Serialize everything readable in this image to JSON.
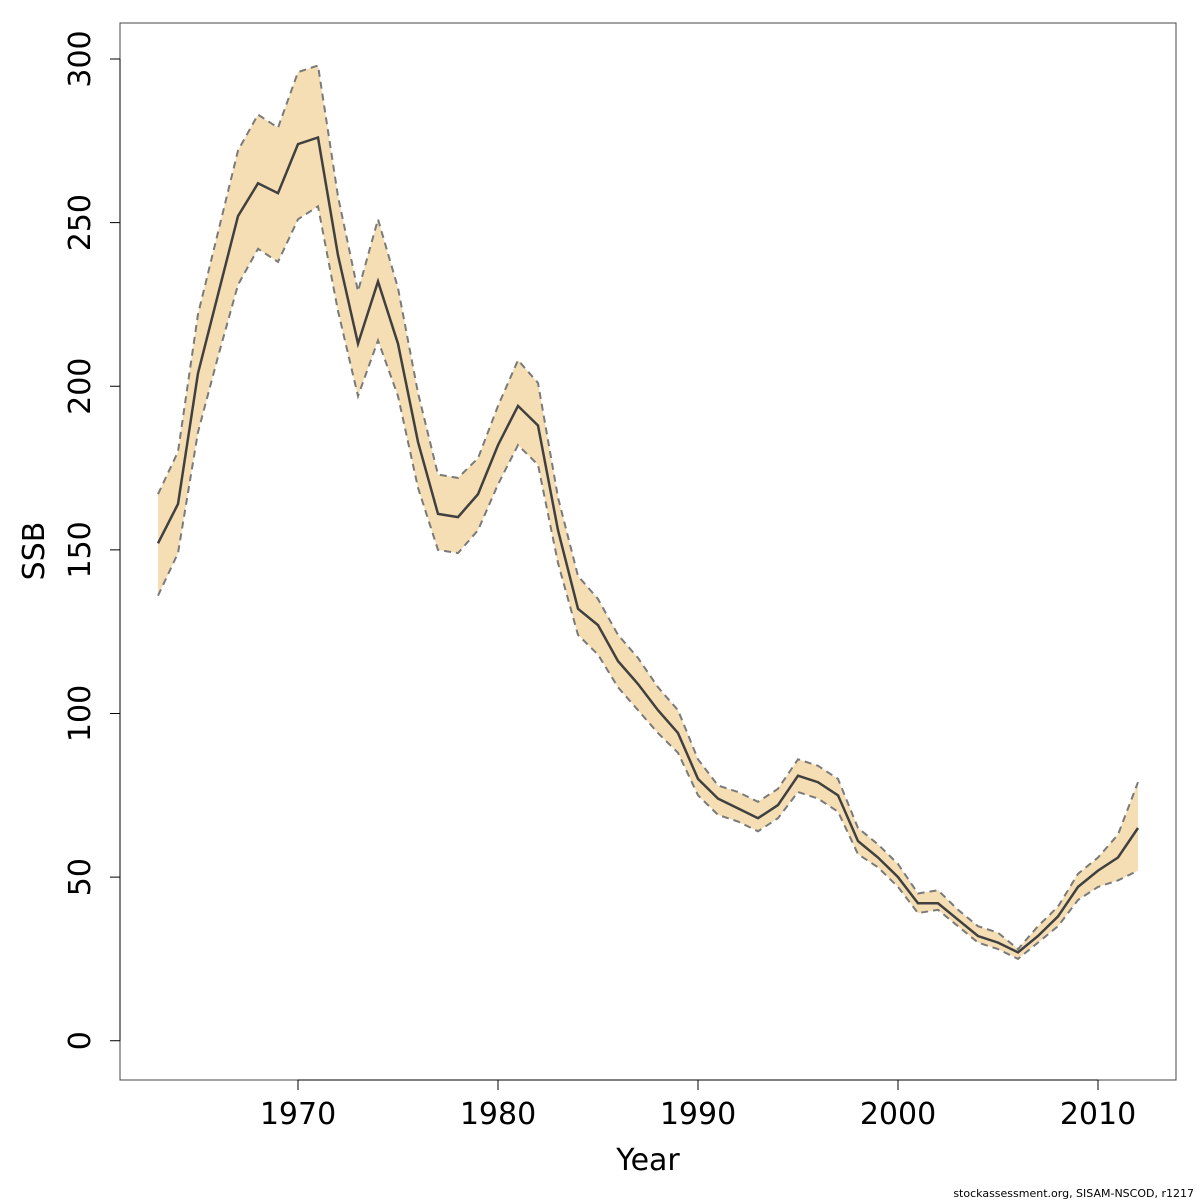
{
  "chart_data": {
    "type": "line",
    "xlabel": "Year",
    "ylabel": "SSB",
    "xlim": [
      1961.1,
      2013.9
    ],
    "ylim": [
      -12,
      311
    ],
    "x_ticks": [
      1970,
      1980,
      1990,
      2000,
      2010
    ],
    "y_ticks": [
      0,
      50,
      100,
      150,
      200,
      250,
      300
    ],
    "grid": false,
    "legend": "none",
    "colors": {
      "band": "#F5DEB3",
      "line": "#404040",
      "bound": "#7a7a7a"
    },
    "x": [
      1963,
      1964,
      1965,
      1966,
      1967,
      1968,
      1969,
      1970,
      1971,
      1972,
      1973,
      1974,
      1975,
      1976,
      1977,
      1978,
      1979,
      1980,
      1981,
      1982,
      1983,
      1984,
      1985,
      1986,
      1987,
      1988,
      1989,
      1990,
      1991,
      1992,
      1993,
      1994,
      1995,
      1996,
      1997,
      1998,
      1999,
      2000,
      2001,
      2002,
      2003,
      2004,
      2005,
      2006,
      2007,
      2008,
      2009,
      2010,
      2011,
      2012
    ],
    "series": [
      {
        "values": [
          152,
          164,
          204,
          228,
          252,
          262,
          259,
          274,
          276,
          240,
          213,
          232,
          213,
          183,
          161,
          160,
          167,
          182,
          194,
          188,
          156,
          132,
          127,
          116,
          109,
          101,
          94,
          80,
          74,
          71,
          68,
          72,
          81,
          79,
          75,
          61,
          56,
          50,
          42,
          42,
          37,
          32,
          30,
          27,
          32,
          38,
          47,
          52,
          56,
          65
        ]
      },
      {
        "values": [
          167,
          180,
          222,
          247,
          272,
          283,
          279,
          296,
          298,
          258,
          229,
          251,
          230,
          198,
          173,
          172,
          178,
          194,
          208,
          201,
          166,
          142,
          135,
          124,
          117,
          108,
          101,
          86,
          78,
          76,
          73,
          77,
          86,
          84,
          80,
          65,
          60,
          54,
          45,
          46,
          40,
          35,
          33,
          28,
          35,
          41,
          51,
          56,
          63,
          79
        ]
      },
      {
        "values": [
          136,
          149,
          186,
          209,
          231,
          242,
          238,
          251,
          255,
          223,
          197,
          214,
          197,
          169,
          150,
          149,
          156,
          170,
          182,
          176,
          146,
          124,
          118,
          108,
          101,
          94,
          88,
          75,
          69,
          67,
          64,
          68,
          76,
          74,
          70,
          57,
          53,
          47,
          39,
          40,
          35,
          30,
          28,
          25,
          30,
          35,
          43,
          47,
          49,
          52
        ]
      }
    ]
  },
  "footer_text": "stockassessment.org, SISAM-NSCOD, r1217"
}
